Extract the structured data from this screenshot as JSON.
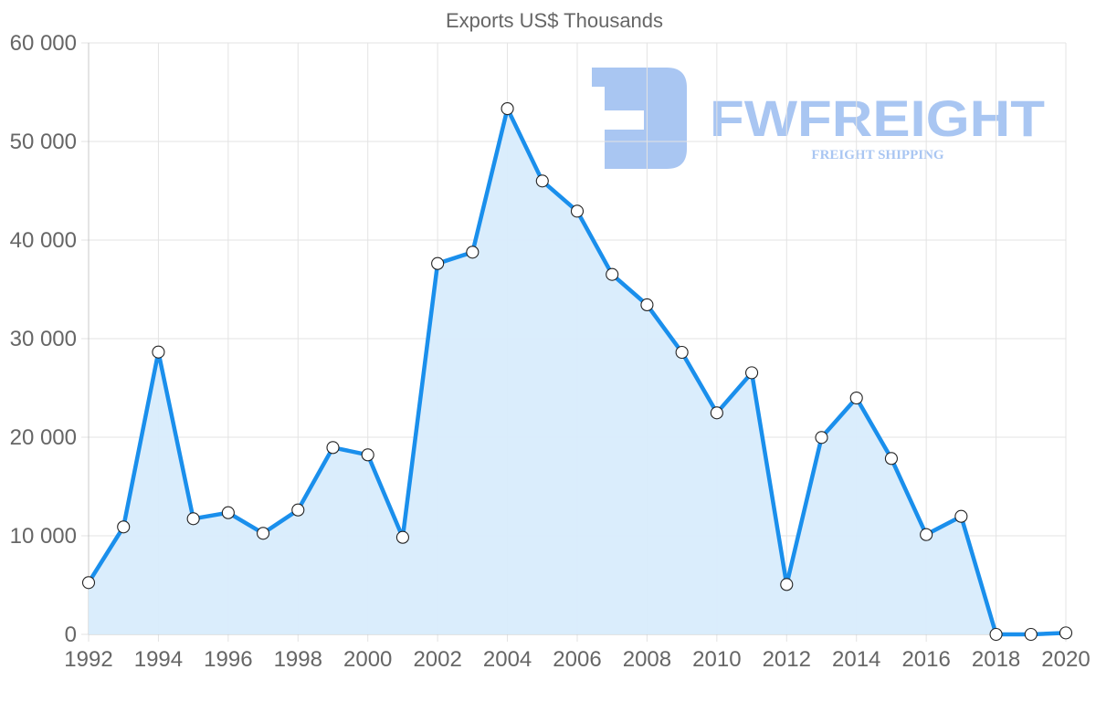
{
  "chart_data": {
    "type": "area",
    "title": "Exports US$ Thousands",
    "xlabel": "",
    "ylabel": "",
    "x": [
      1992,
      1993,
      1994,
      1995,
      1996,
      1997,
      1998,
      1999,
      2000,
      2001,
      2002,
      2003,
      2004,
      2005,
      2006,
      2007,
      2008,
      2009,
      2010,
      2011,
      2012,
      2013,
      2014,
      2015,
      2016,
      2017,
      2018,
      2019,
      2020
    ],
    "series": [
      {
        "name": "Exports US$ Thousands",
        "values": [
          5250,
          10900,
          28640,
          11730,
          12340,
          10250,
          12620,
          18950,
          18210,
          9840,
          37620,
          38770,
          53330,
          45990,
          42930,
          36510,
          33430,
          28610,
          22470,
          26540,
          5060,
          19970,
          23980,
          17840,
          10120,
          11970,
          0,
          0,
          150
        ]
      }
    ],
    "ylim": [
      0,
      60000
    ],
    "xlim": [
      1992,
      2020
    ],
    "y_ticks": [
      0,
      10000,
      20000,
      30000,
      40000,
      50000,
      60000
    ],
    "y_tick_labels": [
      "0",
      "10 000",
      "20 000",
      "30 000",
      "40 000",
      "50 000",
      "60 000"
    ],
    "x_ticks": [
      1992,
      1994,
      1996,
      1998,
      2000,
      2002,
      2004,
      2006,
      2008,
      2010,
      2012,
      2014,
      2016,
      2018,
      2020
    ],
    "x_tick_labels": [
      "1992",
      "1994",
      "1996",
      "1998",
      "2000",
      "2002",
      "2004",
      "2006",
      "2008",
      "2010",
      "2012",
      "2014",
      "2016",
      "2018",
      "2020"
    ],
    "grid": true,
    "legend": "none",
    "colors": {
      "line": "#1a8fec",
      "fill": "#d8ecfc",
      "grid": "#e3e3e3",
      "axis_text": "#666666",
      "point_fill": "#ffffff",
      "point_stroke": "#222222"
    }
  },
  "watermark": {
    "brand": "FWFREIGHT",
    "tagline": "FREIGHT SHIPPING",
    "color": "#a9c6f2"
  }
}
